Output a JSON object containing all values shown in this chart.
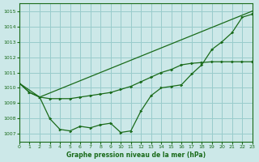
{
  "title": "Graphe pression niveau de la mer (hPa)",
  "background_color": "#cce8e8",
  "grid_color": "#99cccc",
  "line_color": "#1a6b1a",
  "xlim": [
    0,
    23
  ],
  "ylim": [
    1006.5,
    1015.5
  ],
  "yticks": [
    1007,
    1008,
    1009,
    1010,
    1011,
    1012,
    1013,
    1014,
    1015
  ],
  "xticks": [
    0,
    1,
    2,
    3,
    4,
    5,
    6,
    7,
    8,
    9,
    10,
    11,
    12,
    13,
    14,
    15,
    16,
    17,
    18,
    19,
    20,
    21,
    22,
    23
  ],
  "series1_x": [
    0,
    2,
    23
  ],
  "series1_y": [
    1010.3,
    1009.4,
    1015.0
  ],
  "series2_x": [
    0,
    1,
    2,
    3,
    4,
    5,
    6,
    7,
    8,
    9,
    10,
    11,
    12,
    13,
    14,
    15,
    16,
    17,
    18,
    19,
    20,
    21,
    22,
    23
  ],
  "series2_y": [
    1010.3,
    1009.7,
    1009.4,
    1009.3,
    1009.3,
    1009.3,
    1009.4,
    1009.5,
    1009.6,
    1009.7,
    1009.9,
    1010.1,
    1010.4,
    1010.7,
    1011.0,
    1011.2,
    1011.5,
    1011.6,
    1011.65,
    1011.7,
    1011.7,
    1011.7,
    1011.7,
    1011.7
  ],
  "series3_x": [
    0,
    1,
    2,
    3,
    4,
    5,
    6,
    7,
    8,
    9,
    10,
    11,
    12,
    13,
    14,
    15,
    16,
    17,
    18,
    19,
    20,
    21,
    22,
    23
  ],
  "series3_y": [
    1010.3,
    1009.7,
    1009.4,
    1008.0,
    1007.3,
    1007.2,
    1007.5,
    1007.4,
    1007.6,
    1007.7,
    1007.1,
    1007.2,
    1008.5,
    1009.5,
    1010.0,
    1010.1,
    1010.2,
    1010.9,
    1011.5,
    1012.5,
    1013.0,
    1013.6,
    1014.6,
    1014.8
  ]
}
